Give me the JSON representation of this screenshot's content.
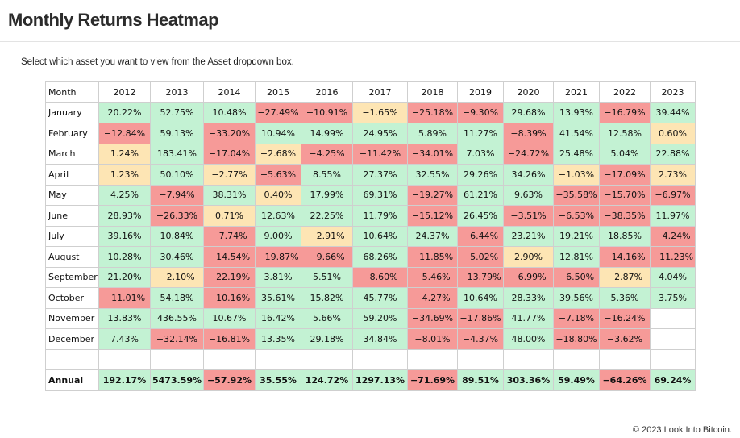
{
  "page": {
    "title": "Monthly Returns Heatmap",
    "instructions": "Select which asset you want to view from the Asset dropdown box.",
    "copyright": "© 2023 Look Into Bitcoin."
  },
  "colors": {
    "positive": "#c3f2d3",
    "small": "#fde5b4",
    "negative": "#f69a98"
  },
  "table": {
    "month_header": "Month",
    "years": [
      "2012",
      "2013",
      "2014",
      "2015",
      "2016",
      "2017",
      "2018",
      "2019",
      "2020",
      "2021",
      "2022",
      "2023"
    ],
    "rows": [
      {
        "month": "January",
        "values": [
          "20.22%",
          "52.75%",
          "10.48%",
          "−27.49%",
          "−10.91%",
          "−1.65%",
          "−25.18%",
          "−9.30%",
          "29.68%",
          "13.93%",
          "−16.79%",
          "39.44%"
        ]
      },
      {
        "month": "February",
        "values": [
          "−12.84%",
          "59.13%",
          "−33.20%",
          "10.94%",
          "14.99%",
          "24.95%",
          "5.89%",
          "11.27%",
          "−8.39%",
          "41.54%",
          "12.58%",
          "0.60%"
        ]
      },
      {
        "month": "March",
        "values": [
          "1.24%",
          "183.41%",
          "−17.04%",
          "−2.68%",
          "−4.25%",
          "−11.42%",
          "−34.01%",
          "7.03%",
          "−24.72%",
          "25.48%",
          "5.04%",
          "22.88%"
        ]
      },
      {
        "month": "April",
        "values": [
          "1.23%",
          "50.10%",
          "−2.77%",
          "−5.63%",
          "8.55%",
          "27.37%",
          "32.55%",
          "29.26%",
          "34.26%",
          "−1.03%",
          "−17.09%",
          "2.73%"
        ]
      },
      {
        "month": "May",
        "values": [
          "4.25%",
          "−7.94%",
          "38.31%",
          "0.40%",
          "17.99%",
          "69.31%",
          "−19.27%",
          "61.21%",
          "9.63%",
          "−35.58%",
          "−15.70%",
          "−6.97%"
        ]
      },
      {
        "month": "June",
        "values": [
          "28.93%",
          "−26.33%",
          "0.71%",
          "12.63%",
          "22.25%",
          "11.79%",
          "−15.12%",
          "26.45%",
          "−3.51%",
          "−6.53%",
          "−38.35%",
          "11.97%"
        ]
      },
      {
        "month": "July",
        "values": [
          "39.16%",
          "10.84%",
          "−7.74%",
          "9.00%",
          "−2.91%",
          "10.64%",
          "24.37%",
          "−6.44%",
          "23.21%",
          "19.21%",
          "18.85%",
          "−4.24%"
        ]
      },
      {
        "month": "August",
        "values": [
          "10.28%",
          "30.46%",
          "−14.54%",
          "−19.87%",
          "−9.66%",
          "68.26%",
          "−11.85%",
          "−5.02%",
          "2.90%",
          "12.81%",
          "−14.16%",
          "−11.23%"
        ]
      },
      {
        "month": "September",
        "values": [
          "21.20%",
          "−2.10%",
          "−22.19%",
          "3.81%",
          "5.51%",
          "−8.60%",
          "−5.46%",
          "−13.79%",
          "−6.99%",
          "−6.50%",
          "−2.87%",
          "4.04%"
        ]
      },
      {
        "month": "October",
        "values": [
          "−11.01%",
          "54.18%",
          "−10.16%",
          "35.61%",
          "15.82%",
          "45.77%",
          "−4.27%",
          "10.64%",
          "28.33%",
          "39.56%",
          "5.36%",
          "3.75%"
        ]
      },
      {
        "month": "November",
        "values": [
          "13.83%",
          "436.55%",
          "10.67%",
          "16.42%",
          "5.66%",
          "59.20%",
          "−34.69%",
          "−17.86%",
          "41.77%",
          "−7.18%",
          "−16.24%",
          ""
        ]
      },
      {
        "month": "December",
        "values": [
          "7.43%",
          "−32.14%",
          "−16.81%",
          "13.35%",
          "29.18%",
          "34.84%",
          "−8.01%",
          "−4.37%",
          "48.00%",
          "−18.80%",
          "−3.62%",
          ""
        ]
      }
    ],
    "annual": {
      "label": "Annual",
      "values": [
        "192.17%",
        "5473.59%",
        "−57.92%",
        "35.55%",
        "124.72%",
        "1297.13%",
        "−71.69%",
        "89.51%",
        "303.36%",
        "59.49%",
        "−64.26%",
        "69.24%"
      ]
    }
  }
}
